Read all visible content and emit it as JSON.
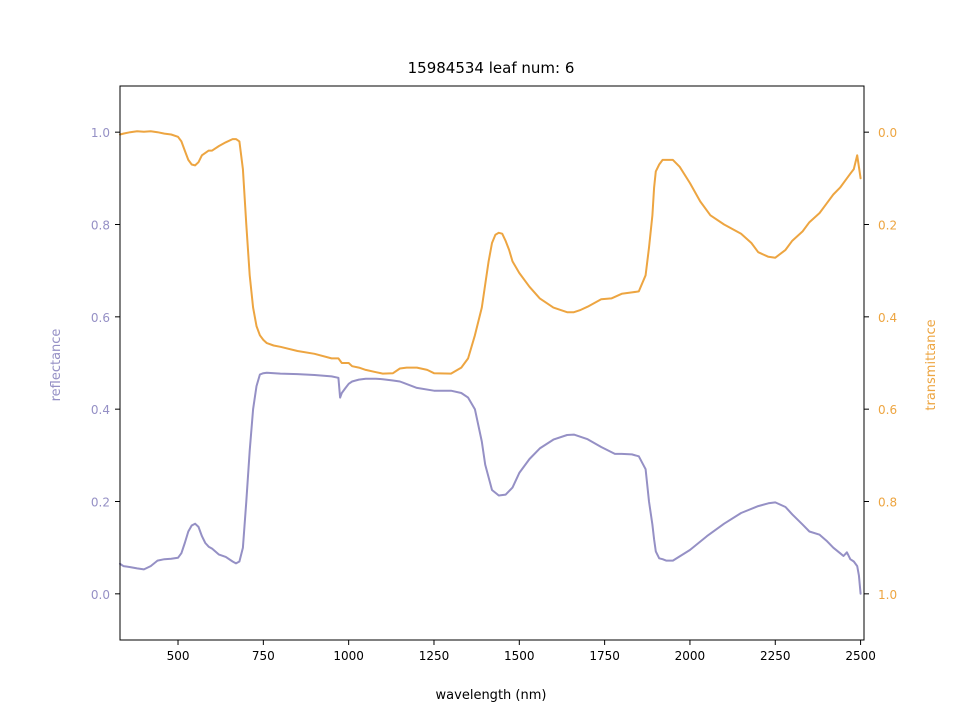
{
  "chart_data": {
    "type": "line",
    "title": "15984534 leaf num: 6",
    "xlabel": "wavelength (nm)",
    "ylabel_left": "reflectance",
    "ylabel_right": "transmittance",
    "xlim": [
      330,
      2510
    ],
    "ylim_left": [
      -0.1,
      1.1
    ],
    "ylim_right": [
      1.1,
      -0.1
    ],
    "right_axis_inverted": true,
    "x_ticks": [
      500,
      750,
      1000,
      1250,
      1500,
      1750,
      2000,
      2250,
      2500
    ],
    "x_tick_labels": [
      "500",
      "750",
      "1000",
      "1250",
      "1500",
      "1750",
      "2000",
      "2250",
      "2500"
    ],
    "y_left_ticks": [
      0.0,
      0.2,
      0.4,
      0.6,
      0.8,
      1.0
    ],
    "y_left_tick_labels": [
      "0.0",
      "0.2",
      "0.4",
      "0.6",
      "0.8",
      "1.0"
    ],
    "y_right_ticks": [
      0.0,
      0.2,
      0.4,
      0.6,
      0.8,
      1.0
    ],
    "y_right_tick_labels": [
      "0.0",
      "0.2",
      "0.4",
      "0.6",
      "0.8",
      "1.0"
    ],
    "grid": false,
    "legend": "none",
    "colors": {
      "reflectance": "#9590c5",
      "transmittance": "#eda541"
    },
    "series": [
      {
        "axis": "left",
        "x": [
          330,
          340,
          360,
          380,
          400,
          420,
          440,
          460,
          480,
          500,
          510,
          520,
          530,
          540,
          550,
          560,
          570,
          580,
          590,
          600,
          620,
          640,
          660,
          670,
          680,
          690,
          700,
          710,
          720,
          730,
          740,
          750,
          760,
          800,
          850,
          900,
          950,
          970,
          975,
          980,
          990,
          1000,
          1010,
          1030,
          1050,
          1080,
          1100,
          1130,
          1150,
          1200,
          1250,
          1300,
          1330,
          1350,
          1370,
          1390,
          1400,
          1420,
          1440,
          1460,
          1480,
          1500,
          1530,
          1560,
          1600,
          1640,
          1660,
          1700,
          1740,
          1780,
          1800,
          1830,
          1850,
          1870,
          1880,
          1890,
          1895,
          1900,
          1910,
          1920,
          1930,
          1950,
          2000,
          2050,
          2100,
          2150,
          2200,
          2230,
          2250,
          2280,
          2300,
          2330,
          2350,
          2380,
          2400,
          2420,
          2440,
          2450,
          2460,
          2470,
          2480,
          2490,
          2495,
          2500
        ],
        "y": [
          0.065,
          0.06,
          0.058,
          0.055,
          0.053,
          0.06,
          0.072,
          0.075,
          0.076,
          0.078,
          0.088,
          0.11,
          0.135,
          0.148,
          0.152,
          0.145,
          0.125,
          0.11,
          0.102,
          0.098,
          0.085,
          0.08,
          0.07,
          0.066,
          0.07,
          0.1,
          0.2,
          0.31,
          0.4,
          0.45,
          0.475,
          0.478,
          0.479,
          0.477,
          0.476,
          0.474,
          0.471,
          0.468,
          0.425,
          0.435,
          0.445,
          0.455,
          0.46,
          0.464,
          0.466,
          0.466,
          0.465,
          0.462,
          0.46,
          0.446,
          0.44,
          0.44,
          0.435,
          0.425,
          0.4,
          0.33,
          0.28,
          0.225,
          0.213,
          0.215,
          0.23,
          0.262,
          0.292,
          0.315,
          0.334,
          0.344,
          0.345,
          0.335,
          0.318,
          0.303,
          0.303,
          0.302,
          0.298,
          0.27,
          0.2,
          0.15,
          0.118,
          0.092,
          0.077,
          0.075,
          0.072,
          0.072,
          0.095,
          0.125,
          0.152,
          0.175,
          0.19,
          0.196,
          0.198,
          0.188,
          0.172,
          0.15,
          0.135,
          0.128,
          0.115,
          0.1,
          0.088,
          0.082,
          0.09,
          0.075,
          0.07,
          0.06,
          0.04,
          0.0
        ]
      },
      {
        "axis": "right",
        "x": [
          330,
          340,
          360,
          380,
          400,
          420,
          440,
          460,
          480,
          500,
          510,
          520,
          530,
          540,
          550,
          560,
          570,
          580,
          590,
          600,
          620,
          640,
          660,
          670,
          680,
          690,
          700,
          710,
          720,
          730,
          740,
          750,
          760,
          780,
          800,
          850,
          900,
          950,
          970,
          980,
          1000,
          1010,
          1030,
          1050,
          1080,
          1100,
          1130,
          1150,
          1170,
          1200,
          1230,
          1250,
          1300,
          1330,
          1350,
          1370,
          1390,
          1400,
          1410,
          1420,
          1430,
          1440,
          1450,
          1460,
          1470,
          1480,
          1500,
          1530,
          1560,
          1600,
          1640,
          1660,
          1680,
          1700,
          1740,
          1770,
          1800,
          1830,
          1850,
          1870,
          1880,
          1890,
          1895,
          1900,
          1910,
          1920,
          1930,
          1950,
          1970,
          2000,
          2030,
          2060,
          2100,
          2150,
          2180,
          2200,
          2230,
          2250,
          2280,
          2300,
          2330,
          2350,
          2380,
          2400,
          2420,
          2440,
          2460,
          2470,
          2480,
          2490,
          2500
        ],
        "y": [
          0.005,
          0.003,
          0.0,
          -0.002,
          -0.001,
          -0.002,
          0.0,
          0.003,
          0.005,
          0.01,
          0.02,
          0.04,
          0.06,
          0.07,
          0.072,
          0.065,
          0.05,
          0.045,
          0.04,
          0.04,
          0.03,
          0.022,
          0.015,
          0.015,
          0.02,
          0.08,
          0.2,
          0.31,
          0.38,
          0.42,
          0.44,
          0.45,
          0.457,
          0.462,
          0.465,
          0.474,
          0.48,
          0.49,
          0.49,
          0.5,
          0.5,
          0.507,
          0.51,
          0.515,
          0.52,
          0.523,
          0.522,
          0.512,
          0.51,
          0.51,
          0.515,
          0.522,
          0.523,
          0.51,
          0.49,
          0.44,
          0.38,
          0.33,
          0.28,
          0.24,
          0.222,
          0.218,
          0.22,
          0.236,
          0.255,
          0.28,
          0.305,
          0.335,
          0.36,
          0.38,
          0.39,
          0.39,
          0.385,
          0.378,
          0.362,
          0.36,
          0.35,
          0.347,
          0.345,
          0.31,
          0.25,
          0.18,
          0.12,
          0.085,
          0.07,
          0.06,
          0.06,
          0.06,
          0.075,
          0.11,
          0.15,
          0.18,
          0.2,
          0.22,
          0.24,
          0.26,
          0.27,
          0.272,
          0.255,
          0.235,
          0.215,
          0.195,
          0.175,
          0.155,
          0.135,
          0.12,
          0.1,
          0.09,
          0.08,
          0.05,
          0.1
        ]
      }
    ]
  }
}
